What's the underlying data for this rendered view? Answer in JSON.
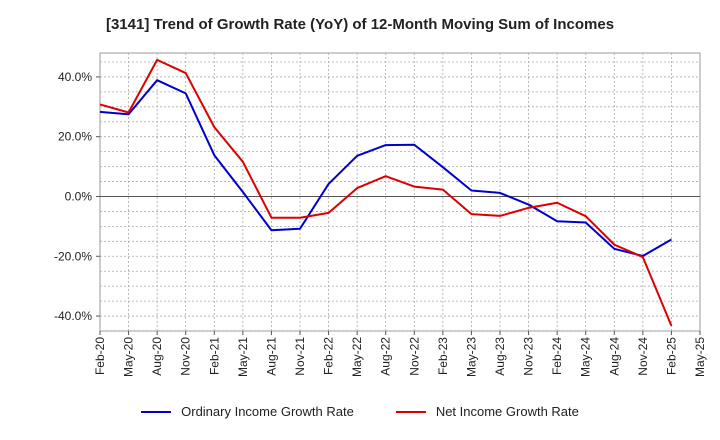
{
  "chart_data": {
    "type": "line",
    "title": "[3141]  Trend of Growth Rate (YoY) of 12-Month Moving Sum of Incomes",
    "xlabel": "",
    "ylabel": "",
    "x_ticks": [
      "Feb-20",
      "May-20",
      "Aug-20",
      "Nov-20",
      "Feb-21",
      "May-21",
      "Aug-21",
      "Nov-21",
      "Feb-22",
      "May-22",
      "Aug-22",
      "Nov-22",
      "Feb-23",
      "May-23",
      "Aug-23",
      "Nov-23",
      "Feb-24",
      "May-24",
      "Aug-24",
      "Nov-24",
      "Feb-25",
      "May-25"
    ],
    "y_ticks": [
      "40.0%",
      "20.0%",
      "0.0%",
      "-20.0%",
      "-40.0%"
    ],
    "y_tick_values": [
      40,
      20,
      0,
      -20,
      -40
    ],
    "ylim": [
      -45,
      48
    ],
    "grid": true,
    "legend_position": "bottom",
    "series": [
      {
        "name": "Ordinary Income Growth Rate",
        "color": "#0000cc",
        "values": [
          28.3,
          27.5,
          38.9,
          34.5,
          13.8,
          1.5,
          -11.3,
          -10.8,
          4.2,
          13.6,
          17.2,
          17.3,
          9.8,
          2.0,
          1.2,
          -2.7,
          -8.3,
          -8.7,
          -17.5,
          -19.9,
          -14.4
        ]
      },
      {
        "name": "Net Income Growth Rate",
        "color": "#dd0000",
        "values": [
          30.8,
          28.1,
          45.7,
          41.3,
          23.2,
          11.6,
          -7.1,
          -7.1,
          -5.5,
          2.8,
          6.8,
          3.3,
          2.3,
          -5.9,
          -6.5,
          -3.8,
          -2.1,
          -6.6,
          -16.1,
          -20.3,
          -43.3
        ]
      }
    ]
  }
}
